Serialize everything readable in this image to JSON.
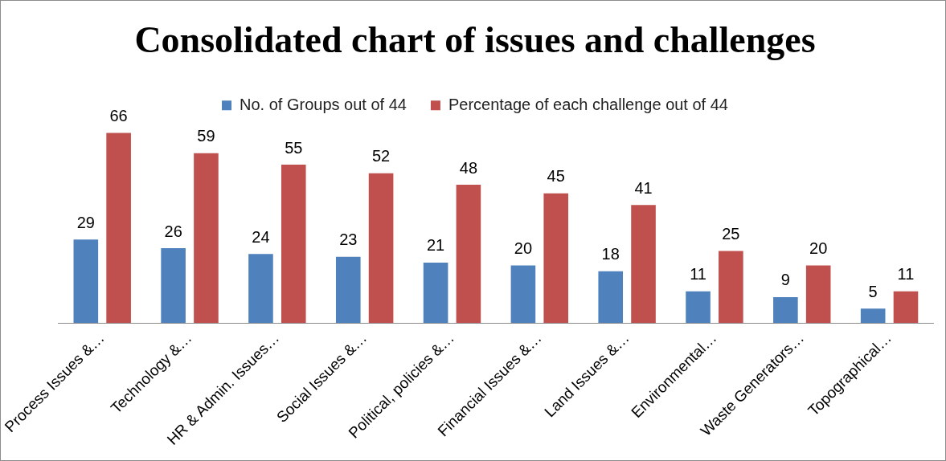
{
  "chart_data": {
    "type": "bar",
    "title": "Consolidated chart of issues and challenges",
    "categories": [
      "Process Issues &…",
      "Technology &…",
      "HR & Admin. Issues…",
      "Social Issues &…",
      "Political, policies &…",
      "Financial Issues &…",
      "Land Issues &…",
      "Environmental…",
      "Waste Generators…",
      "Topographical…"
    ],
    "series": [
      {
        "name": "No. of Groups out of 44",
        "color": "#4f81bd",
        "values": [
          29,
          26,
          24,
          23,
          21,
          20,
          18,
          11,
          9,
          5
        ]
      },
      {
        "name": "Percentage of each challenge out of 44",
        "color": "#c0504d",
        "values": [
          66,
          59,
          55,
          52,
          48,
          45,
          41,
          25,
          20,
          11
        ]
      }
    ],
    "data_labels": true,
    "legend": "top",
    "grid": false,
    "tick_labels": "x"
  }
}
